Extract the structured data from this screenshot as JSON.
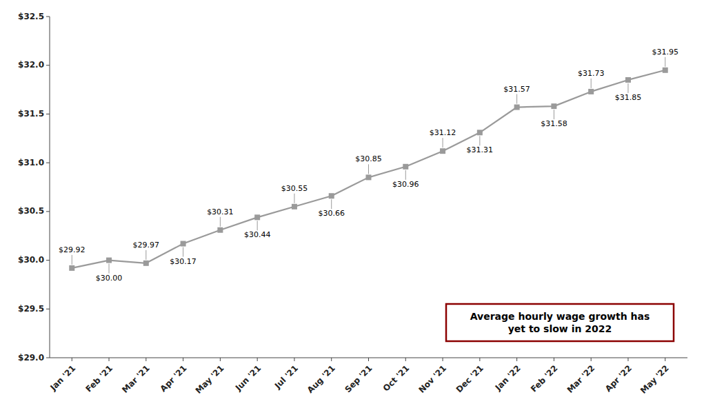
{
  "chart_data": {
    "type": "line",
    "categories": [
      "Jan '21",
      "Feb '21",
      "Mar '21",
      "Apr '21",
      "May '21",
      "Jun '21",
      "Jul '21",
      "Aug '21",
      "Sep '21",
      "Oct '21",
      "Nov '21",
      "Dec '21",
      "Jan '22",
      "Feb '22",
      "Mar '22",
      "Apr '22",
      "May '22"
    ],
    "values": [
      29.92,
      30.0,
      29.97,
      30.17,
      30.31,
      30.44,
      30.55,
      30.66,
      30.85,
      30.96,
      31.12,
      31.31,
      31.57,
      31.58,
      31.73,
      31.85,
      31.95
    ],
    "value_labels": [
      "$29.92",
      "$30.00",
      "$29.97",
      "$30.17",
      "$30.31",
      "$30.44",
      "$30.55",
      "$30.66",
      "$30.85",
      "$30.96",
      "$31.12",
      "$31.31",
      "$31.57",
      "$31.58",
      "$31.73",
      "$31.85",
      "$31.95"
    ],
    "data_labels": true,
    "color": "#9a9a9a",
    "marker": "square",
    "ylim": [
      29.0,
      32.5
    ],
    "yticks": [
      {
        "value": 29.0,
        "label": "$29.0"
      },
      {
        "value": 29.5,
        "label": "$29.5"
      },
      {
        "value": 30.0,
        "label": "$30.0"
      },
      {
        "value": 30.5,
        "label": "$30.5"
      },
      {
        "value": 31.0,
        "label": "$31.0"
      },
      {
        "value": 31.5,
        "label": "$31.5"
      },
      {
        "value": 32.0,
        "label": "$32.0"
      },
      {
        "value": 32.5,
        "label": "$32.5"
      }
    ],
    "annotations": [
      "Average hourly wage growth has\nyet to slow in 2022"
    ],
    "grid": false
  }
}
